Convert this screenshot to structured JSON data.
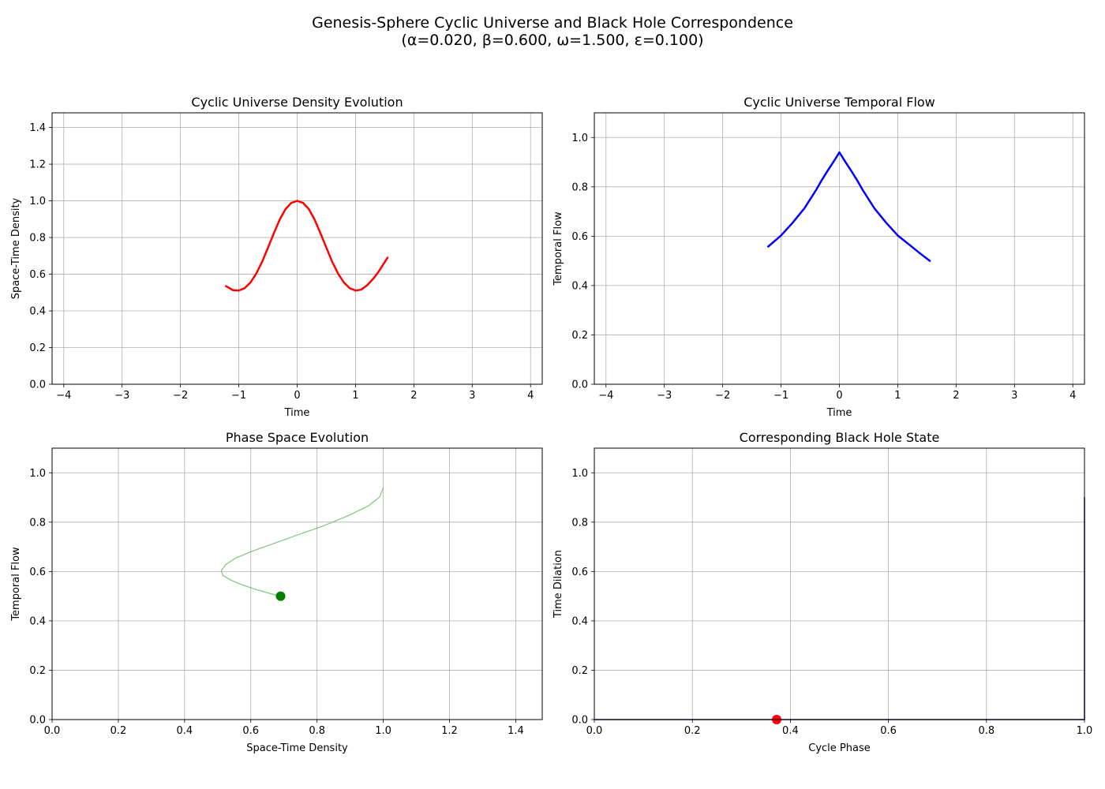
{
  "figure": {
    "title_line1": "Genesis-Sphere Cyclic Universe and Black Hole Correspondence",
    "title_line2": "(α=0.020, β=0.600, ω=1.500, ε=0.100)"
  },
  "chart_data": [
    {
      "id": "density",
      "type": "line",
      "title": "Cyclic Universe Density Evolution",
      "xlabel": "Time",
      "ylabel": "Space-Time Density",
      "xlim": [
        -4.2,
        4.2
      ],
      "ylim": [
        0,
        1.48
      ],
      "xticks": [
        -4,
        -3,
        -2,
        -1,
        0,
        1,
        2,
        3,
        4
      ],
      "yticks": [
        0.0,
        0.2,
        0.4,
        0.6,
        0.8,
        1.0,
        1.2,
        1.4
      ],
      "grid": true,
      "series": [
        {
          "color": "#ff0000",
          "width": 2.5,
          "x": [
            -1.22,
            -1.1,
            -1.0,
            -0.9,
            -0.8,
            -0.7,
            -0.6,
            -0.5,
            -0.4,
            -0.3,
            -0.2,
            -0.1,
            0.0,
            0.1,
            0.2,
            0.3,
            0.4,
            0.5,
            0.6,
            0.7,
            0.8,
            0.9,
            1.0,
            1.1,
            1.2,
            1.3,
            1.4,
            1.5,
            1.55
          ],
          "y": [
            0.535,
            0.513,
            0.511,
            0.524,
            0.555,
            0.604,
            0.668,
            0.745,
            0.823,
            0.897,
            0.955,
            0.989,
            1.0,
            0.989,
            0.955,
            0.897,
            0.823,
            0.745,
            0.668,
            0.604,
            0.555,
            0.524,
            0.511,
            0.516,
            0.54,
            0.574,
            0.616,
            0.666,
            0.69
          ]
        }
      ]
    },
    {
      "id": "temporal",
      "type": "line",
      "title": "Cyclic Universe Temporal Flow",
      "xlabel": "Time",
      "ylabel": "Temporal Flow",
      "xlim": [
        -4.2,
        4.2
      ],
      "ylim": [
        0,
        1.1
      ],
      "xticks": [
        -4,
        -3,
        -2,
        -1,
        0,
        1,
        2,
        3,
        4
      ],
      "yticks": [
        0.0,
        0.2,
        0.4,
        0.6,
        0.8,
        1.0
      ],
      "grid": true,
      "series": [
        {
          "color": "#0000ff",
          "width": 2.5,
          "x": [
            -1.22,
            -1.0,
            -0.8,
            -0.6,
            -0.4,
            -0.3,
            -0.2,
            -0.1,
            0.0,
            0.1,
            0.2,
            0.3,
            0.4,
            0.6,
            0.8,
            1.0,
            1.2,
            1.4,
            1.55
          ],
          "y": [
            0.558,
            0.603,
            0.655,
            0.713,
            0.787,
            0.828,
            0.866,
            0.902,
            0.94,
            0.902,
            0.866,
            0.828,
            0.787,
            0.713,
            0.655,
            0.603,
            0.565,
            0.527,
            0.5
          ]
        }
      ]
    },
    {
      "id": "phase",
      "type": "line",
      "title": "Phase Space Evolution",
      "xlabel": "Space-Time Density",
      "ylabel": "Temporal Flow",
      "xlim": [
        0,
        1.48
      ],
      "ylim": [
        0,
        1.1
      ],
      "xticks": [
        0.0,
        0.2,
        0.4,
        0.6,
        0.8,
        1.0,
        1.2,
        1.4
      ],
      "yticks": [
        0.0,
        0.2,
        0.4,
        0.6,
        0.8,
        1.0
      ],
      "grid": true,
      "series": [
        {
          "color": "#5cb85c",
          "width": 1.2,
          "opacity": 0.8,
          "x": [
            1.0,
            0.989,
            0.955,
            0.897,
            0.823,
            0.745,
            0.668,
            0.604,
            0.555,
            0.524,
            0.511,
            0.516,
            0.54,
            0.574,
            0.616,
            0.666,
            0.69
          ],
          "y": [
            0.94,
            0.902,
            0.866,
            0.828,
            0.787,
            0.75,
            0.713,
            0.682,
            0.655,
            0.628,
            0.603,
            0.584,
            0.565,
            0.546,
            0.527,
            0.508,
            0.5
          ]
        }
      ],
      "marker": {
        "x": 0.69,
        "y": 0.5,
        "color": "#008000",
        "radius": 6
      }
    },
    {
      "id": "blackhole",
      "type": "line",
      "title": "Corresponding Black Hole State",
      "xlabel": "Cycle Phase",
      "ylabel": "Time Dilation",
      "xlim": [
        0,
        1.0
      ],
      "ylim": [
        0,
        1.1
      ],
      "xticks": [
        0.0,
        0.2,
        0.4,
        0.6,
        0.8,
        1.0
      ],
      "yticks": [
        0.0,
        0.2,
        0.4,
        0.6,
        0.8,
        1.0
      ],
      "grid": true,
      "series": [
        {
          "color": "#00008b",
          "width": 1.5,
          "x": [
            0.0,
            0.2,
            0.4,
            0.6,
            0.8,
            0.995,
            1.0,
            1.0
          ],
          "y": [
            0.0,
            0.0,
            0.0,
            0.0,
            0.0,
            0.0,
            0.0,
            0.9
          ]
        }
      ],
      "marker": {
        "x": 0.372,
        "y": 0.0,
        "color": "#ff0000",
        "radius": 6
      }
    }
  ]
}
